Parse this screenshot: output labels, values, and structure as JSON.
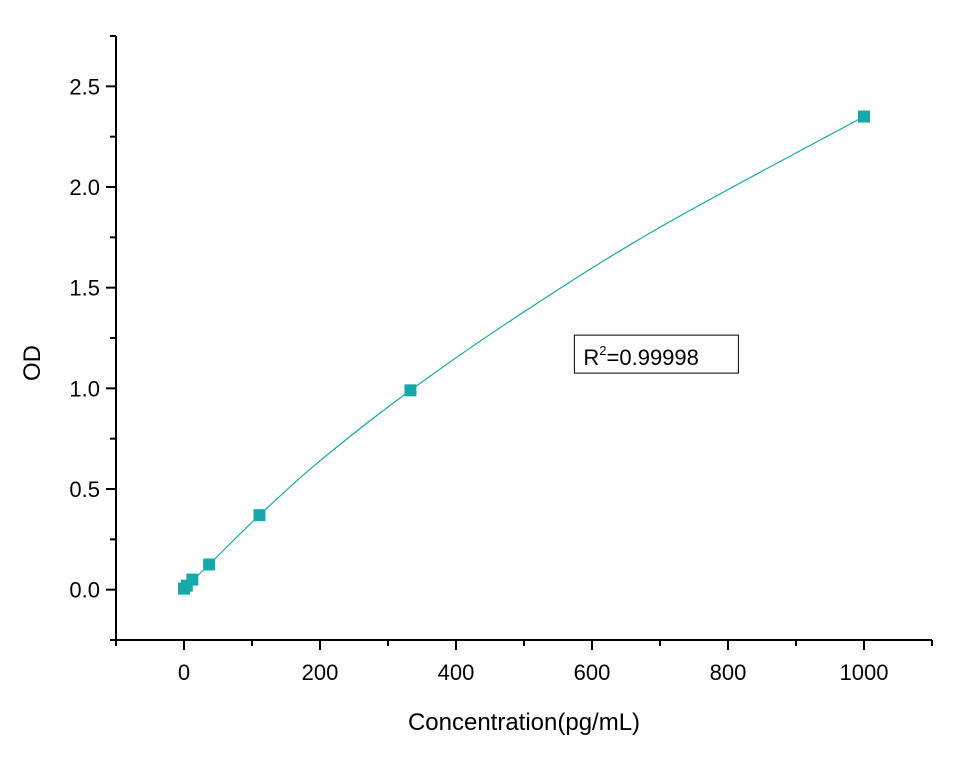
{
  "chart_data": {
    "type": "scatter",
    "title": "",
    "xlabel": "Concentration(pg/mL)",
    "ylabel": "OD",
    "xlim": [
      -100,
      1100
    ],
    "ylim": [
      -0.25,
      2.75
    ],
    "x_ticks": [
      0,
      200,
      400,
      600,
      800,
      1000
    ],
    "x_tick_labels": [
      "0",
      "200",
      "400",
      "600",
      "800",
      "1000"
    ],
    "y_ticks": [
      0.0,
      0.5,
      1.0,
      1.5,
      2.0,
      2.5
    ],
    "y_tick_labels": [
      "0.0",
      "0.5",
      "1.0",
      "1.5",
      "2.0",
      "2.5"
    ],
    "grid": false,
    "marker_color": "#17A9A9",
    "line_color": "#17A9A9",
    "series": [
      {
        "x": [
          0,
          4.1,
          12.3,
          37,
          111,
          333,
          1000
        ],
        "y": [
          0.005,
          0.02,
          0.05,
          0.125,
          0.37,
          0.99,
          2.35
        ]
      }
    ],
    "fit_curve": {
      "type": "smooth",
      "x": [
        0,
        37,
        111,
        200,
        333,
        500,
        700,
        1000
      ],
      "y": [
        0.005,
        0.125,
        0.37,
        0.64,
        0.99,
        1.38,
        1.8,
        2.35
      ]
    },
    "annotation": {
      "text_base": "R",
      "text_sup": "2",
      "text_rest": "=0.99998",
      "x": 780,
      "y": 1.15
    }
  }
}
